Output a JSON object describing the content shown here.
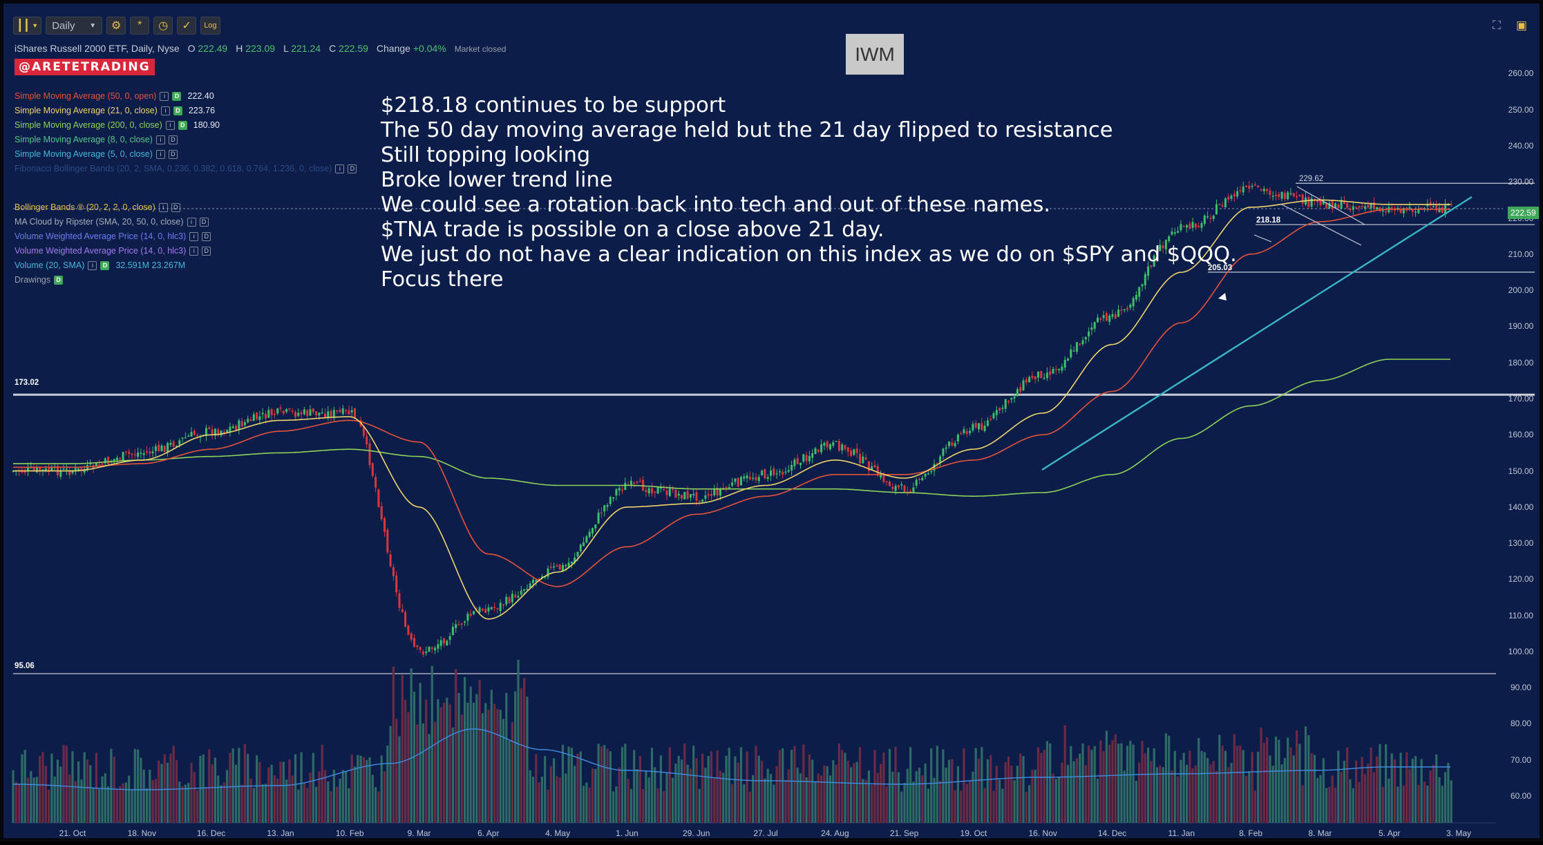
{
  "toolbar": {
    "bars_icon": "candle-bars-icon",
    "interval": "Daily",
    "settings_icon": "gear-icon",
    "indicators_icon": "indicator-icon",
    "clock_icon": "clock-icon",
    "compare_icon": "compare-icon",
    "log_label": "Log"
  },
  "window_controls": {
    "fullscreen_icon": "fullscreen-icon",
    "camera_icon": "camera-icon"
  },
  "symbol": {
    "title": "iShares Russell 2000 ETF, Daily, Nyse",
    "o_label": "O",
    "o": "222.49",
    "h_label": "H",
    "h": "223.09",
    "l_label": "L",
    "l": "221.24",
    "c_label": "C",
    "c": "222.59",
    "change_label": "Change",
    "change": "+0.04%",
    "market_status": "Market closed"
  },
  "brand": "@ARETETRADING",
  "ticker_box": "IWM",
  "indicators": [
    {
      "label": "Simple Moving Average (50, 0, open)",
      "color": "#e5533a",
      "value": "222.40",
      "has_d": true
    },
    {
      "label": "Simple Moving Average (21, 0, close)",
      "color": "#f1d56a",
      "value": "223.76",
      "has_d": true
    },
    {
      "label": "Simple Moving Average (200, 0, close)",
      "color": "#8fd35a",
      "value": "180.90",
      "has_d": true
    },
    {
      "label": "Simple Moving Average (8, 0, close)",
      "color": "#55c98a",
      "value": "",
      "has_d": false
    },
    {
      "label": "Simple Moving Average (5, 0, close)",
      "color": "#46b7d9",
      "value": "",
      "has_d": false
    },
    {
      "label": "Fibonacci Bollinger Bands (20, 2, SMA, 0.236, 0.382, 0.618, 0.764, 1.236, 0, close)",
      "color": "#2c4a86",
      "value": "",
      "has_d": false
    },
    {
      "label": "",
      "color": "#2c4a86",
      "value": "",
      "has_d": false
    },
    {
      "label": "Bollinger Bands ® (20, 2, 2, 0, close)",
      "color": "#e8c04a",
      "value": "",
      "has_d": false
    },
    {
      "label": "MA Cloud by Ripster (SMA, 20, 50, 0, close)",
      "color": "#a6acbb",
      "value": "",
      "has_d": false
    },
    {
      "label": "Volume Weighted Average Price (14, 0, hlc3)",
      "color": "#6f7df0",
      "value": "",
      "has_d": false
    },
    {
      "label": "Volume Weighted Average Price (14, 0, hlc3)",
      "color": "#a77af0",
      "value": "",
      "has_d": false
    },
    {
      "label": "Volume (20, SMA)",
      "color": "#46b7d9",
      "value": "32.591M  23.267M",
      "has_d": true
    },
    {
      "label": "Drawings",
      "color": "#9aa0ac",
      "value": "",
      "has_d": true
    }
  ],
  "notes": [
    "$218.18 continues to be support",
    "The 50 day moving average held but the 21 day flipped to resistance",
    "Still topping looking",
    "Broke lower trend line",
    "We could see a rotation back into tech and out of these names.",
    "$TNA trade is possible on a close above 21 day.",
    "We just do not have a clear indication on this index as we do on $SPY and $QQQ.",
    "Focus there"
  ],
  "annotations": {
    "level_229": "229.62",
    "level_218": "218.18",
    "level_205": "205.03",
    "level_173": "173.02",
    "level_95": "95.06",
    "last_price": "222.59"
  },
  "chart_data": {
    "type": "candlestick",
    "symbol": "IWM",
    "interval": "Daily",
    "price_axis_ticks": [
      "260.00",
      "250.00",
      "240.00",
      "230.00",
      "220.00",
      "210.00",
      "200.00",
      "190.00",
      "180.00",
      "170.00",
      "160.00",
      "150.00",
      "140.00",
      "130.00",
      "120.00",
      "110.00",
      "100.00",
      "90.00",
      "80.00",
      "70.00",
      "60.00"
    ],
    "x_ticks": [
      "21. Oct",
      "18. Nov",
      "16. Dec",
      "13. Jan",
      "10. Feb",
      "9. Mar",
      "6. Apr",
      "4. May",
      "1. Jun",
      "29. Jun",
      "27. Jul",
      "24. Aug",
      "21. Sep",
      "19. Oct",
      "16. Nov",
      "14. Dec",
      "11. Jan",
      "8. Feb",
      "8. Mar",
      "5. Apr",
      "3. May"
    ],
    "price_path": [
      [
        "21. Oct",
        150
      ],
      [
        "18. Nov",
        155
      ],
      [
        "16. Dec",
        161
      ],
      [
        "13. Jan",
        166
      ],
      [
        "10. Feb",
        166
      ],
      [
        "9. Mar",
        100
      ],
      [
        "6. Apr",
        112
      ],
      [
        "4. May",
        123
      ],
      [
        "1. Jun",
        146
      ],
      [
        "29. Jun",
        143
      ],
      [
        "27. Jul",
        149
      ],
      [
        "24. Aug",
        157
      ],
      [
        "21. Sep",
        145
      ],
      [
        "19. Oct",
        162
      ],
      [
        "16. Nov",
        177
      ],
      [
        "14. Dec",
        193
      ],
      [
        "11. Jan",
        217
      ],
      [
        "8. Feb",
        228
      ],
      [
        "8. Mar",
        224
      ],
      [
        "5. Apr",
        222.59
      ]
    ],
    "sma21_path": [
      [
        "21. Oct",
        150
      ],
      [
        "18. Nov",
        153
      ],
      [
        "16. Dec",
        160
      ],
      [
        "13. Jan",
        164
      ],
      [
        "10. Feb",
        165
      ],
      [
        "9. Mar",
        140
      ],
      [
        "6. Apr",
        109
      ],
      [
        "4. May",
        122
      ],
      [
        "1. Jun",
        140
      ],
      [
        "29. Jun",
        141
      ],
      [
        "27. Jul",
        146
      ],
      [
        "24. Aug",
        153
      ],
      [
        "21. Sep",
        148
      ],
      [
        "19. Oct",
        156
      ],
      [
        "16. Nov",
        166
      ],
      [
        "14. Dec",
        185
      ],
      [
        "11. Jan",
        205
      ],
      [
        "8. Feb",
        223
      ],
      [
        "8. Mar",
        225
      ],
      [
        "5. Apr",
        223.76
      ]
    ],
    "sma50_path": [
      [
        "21. Oct",
        151
      ],
      [
        "18. Nov",
        152
      ],
      [
        "16. Dec",
        156
      ],
      [
        "13. Jan",
        161
      ],
      [
        "10. Feb",
        164
      ],
      [
        "9. Mar",
        158
      ],
      [
        "6. Apr",
        127
      ],
      [
        "4. May",
        118
      ],
      [
        "1. Jun",
        129
      ],
      [
        "29. Jun",
        138
      ],
      [
        "27. Jul",
        143
      ],
      [
        "24. Aug",
        149
      ],
      [
        "21. Sep",
        149
      ],
      [
        "19. Oct",
        153
      ],
      [
        "16. Nov",
        160
      ],
      [
        "14. Dec",
        172
      ],
      [
        "11. Jan",
        191
      ],
      [
        "8. Feb",
        210
      ],
      [
        "8. Mar",
        219
      ],
      [
        "5. Apr",
        222.4
      ]
    ],
    "sma200_path": [
      [
        "21. Oct",
        152
      ],
      [
        "18. Nov",
        153
      ],
      [
        "16. Dec",
        154
      ],
      [
        "13. Jan",
        155
      ],
      [
        "10. Feb",
        156
      ],
      [
        "9. Mar",
        154
      ],
      [
        "6. Apr",
        148
      ],
      [
        "4. May",
        146
      ],
      [
        "1. Jun",
        146
      ],
      [
        "29. Jun",
        145
      ],
      [
        "27. Jul",
        145
      ],
      [
        "24. Aug",
        145
      ],
      [
        "21. Sep",
        144
      ],
      [
        "19. Oct",
        143
      ],
      [
        "16. Nov",
        144
      ],
      [
        "14. Dec",
        149
      ],
      [
        "11. Jan",
        159
      ],
      [
        "8. Feb",
        168
      ],
      [
        "8. Mar",
        175
      ],
      [
        "5. Apr",
        180.9
      ]
    ],
    "horizontal_levels": [
      229.62,
      218.18,
      205.03,
      173.02
    ],
    "volume_sma_values": [
      "32.591M",
      "23.267M"
    ]
  }
}
